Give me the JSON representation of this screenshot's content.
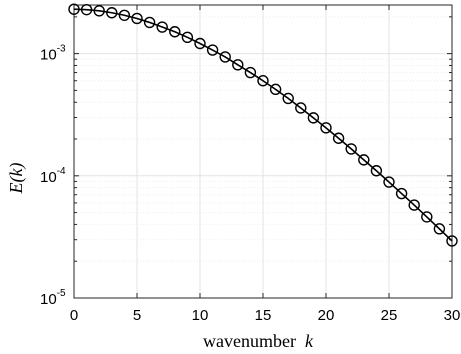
{
  "chart_data": {
    "type": "line",
    "title": "",
    "xlabel": "wavenumber",
    "xlabel_var": "k",
    "ylabel": "E(k)",
    "xlim": [
      0,
      30
    ],
    "ylim": [
      1e-05,
      0.0025
    ],
    "yscale": "log",
    "grid": true,
    "x_ticks": [
      0,
      5,
      10,
      15,
      20,
      25,
      30
    ],
    "y_ticks": [
      {
        "value": 1e-05,
        "base": "10",
        "exp": "-5"
      },
      {
        "value": 0.0001,
        "base": "10",
        "exp": "-4"
      },
      {
        "value": 0.001,
        "base": "10",
        "exp": "-3"
      }
    ],
    "series": [
      {
        "marker": "circle",
        "line": "solid",
        "color": "#000000",
        "x": [
          0,
          1,
          2,
          3,
          4,
          5,
          6,
          7,
          8,
          9,
          10,
          11,
          12,
          13,
          14,
          15,
          16,
          17,
          18,
          19,
          20,
          21,
          22,
          23,
          24,
          25,
          26,
          27,
          28,
          29,
          30
        ],
        "y": [
          0.00231,
          0.00229,
          0.00224,
          0.00216,
          0.00206,
          0.00194,
          0.0018,
          0.00165,
          0.00151,
          0.00136,
          0.00121,
          0.00107,
          0.00094,
          0.00081,
          0.0007,
          0.0006,
          0.00051,
          0.00043,
          0.000359,
          0.000298,
          0.000247,
          0.000203,
          0.000166,
          0.000135,
          0.00011,
          8.89e-05,
          7.16e-05,
          5.76e-05,
          4.61e-05,
          3.68e-05,
          2.93e-05
        ]
      }
    ]
  }
}
